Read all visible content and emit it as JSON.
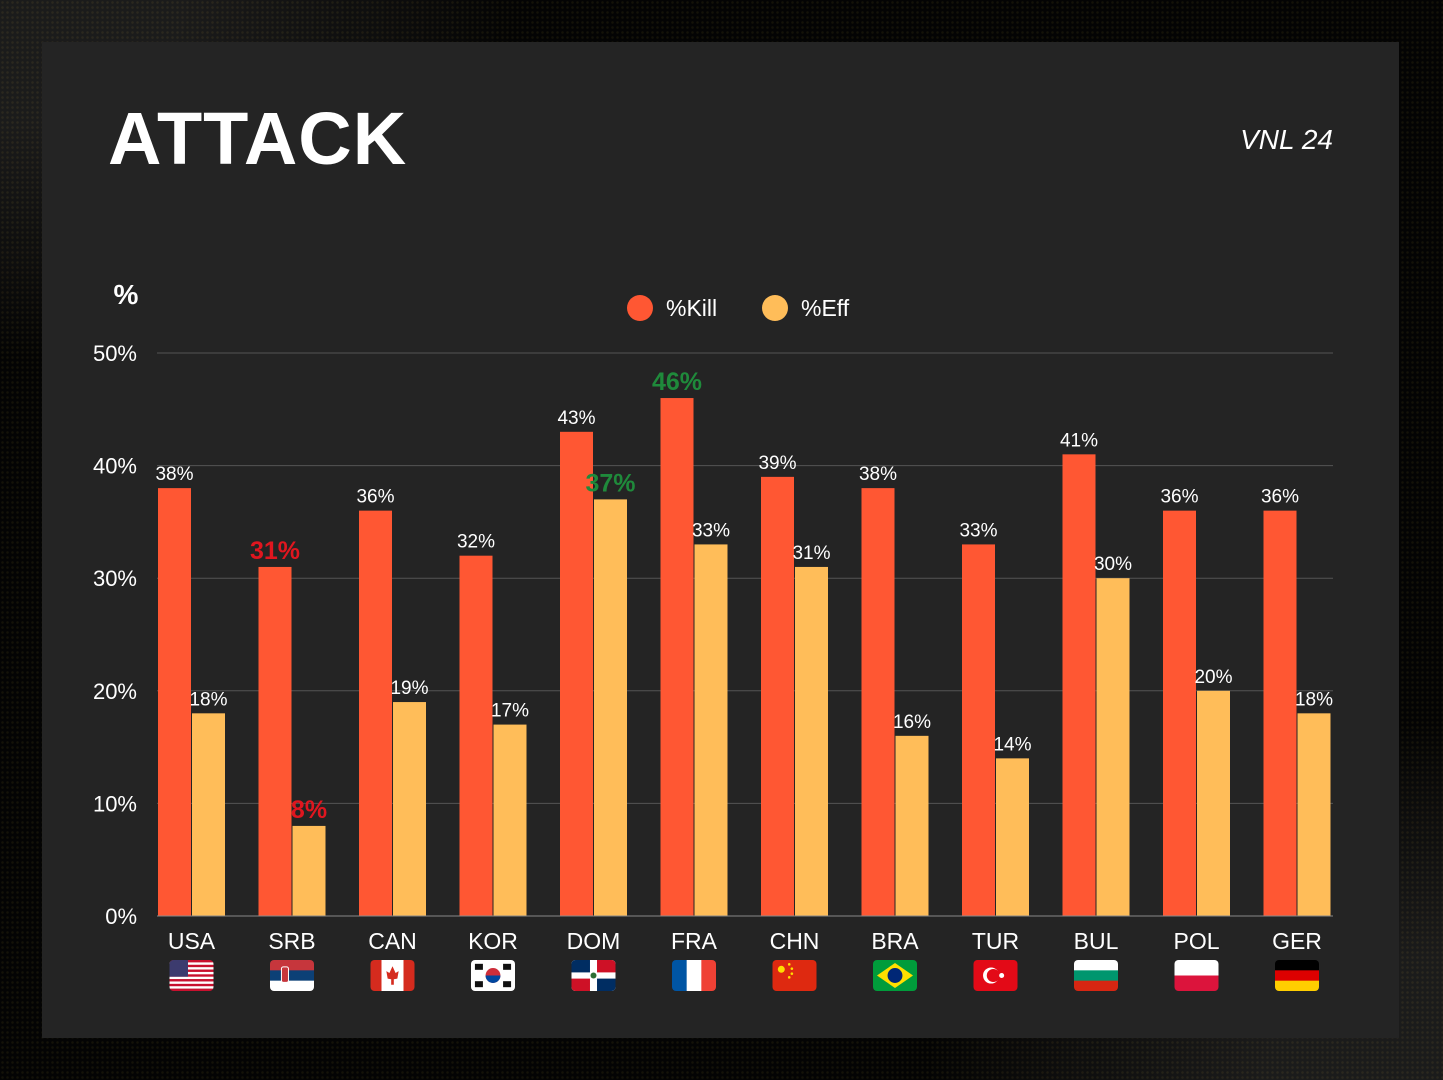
{
  "header": {
    "title": "ATTACK",
    "subtitle": "VNL 24"
  },
  "colors": {
    "kill": "#ff5733",
    "eff": "#ffbd59",
    "low": "#e0161f",
    "high": "#1f8a3b",
    "label": "#ffffff",
    "grid": "#555555"
  },
  "flags": [
    "usa-flag",
    "serbia-flag",
    "canada-flag",
    "korea-flag",
    "dominican-republic-flag",
    "france-flag",
    "china-flag",
    "brazil-flag",
    "turkey-flag",
    "bulgaria-flag",
    "poland-flag",
    "germany-flag"
  ],
  "chart_data": {
    "type": "bar",
    "ylabel": "%",
    "ylim": [
      0,
      50
    ],
    "yticks": [
      "0%",
      "10%",
      "20%",
      "30%",
      "40%",
      "50%"
    ],
    "grid": true,
    "legend_position": "top-center",
    "categories": [
      "USA",
      "SRB",
      "CAN",
      "KOR",
      "DOM",
      "FRA",
      "CHN",
      "BRA",
      "TUR",
      "BUL",
      "POL",
      "GER"
    ],
    "series": [
      {
        "name": "%Kill",
        "values": [
          38,
          31,
          36,
          32,
          43,
          46,
          39,
          38,
          33,
          41,
          36,
          36
        ],
        "labels": [
          "38%",
          "31%",
          "36%",
          "32%",
          "43%",
          "46%",
          "39%",
          "38%",
          "33%",
          "41%",
          "36%",
          "36%"
        ]
      },
      {
        "name": "%Eff",
        "values": [
          18,
          8,
          19,
          17,
          37,
          33,
          31,
          16,
          14,
          30,
          20,
          18
        ],
        "labels": [
          "18%",
          "8%",
          "19%",
          "17%",
          "37%",
          "33%",
          "31%",
          "16%",
          "14%",
          "30%",
          "20%",
          "18%"
        ]
      }
    ],
    "highlights": [
      {
        "series": 0,
        "index": 1,
        "kind": "low"
      },
      {
        "series": 1,
        "index": 1,
        "kind": "low"
      },
      {
        "series": 0,
        "index": 5,
        "kind": "high"
      },
      {
        "series": 1,
        "index": 4,
        "kind": "high"
      }
    ]
  }
}
